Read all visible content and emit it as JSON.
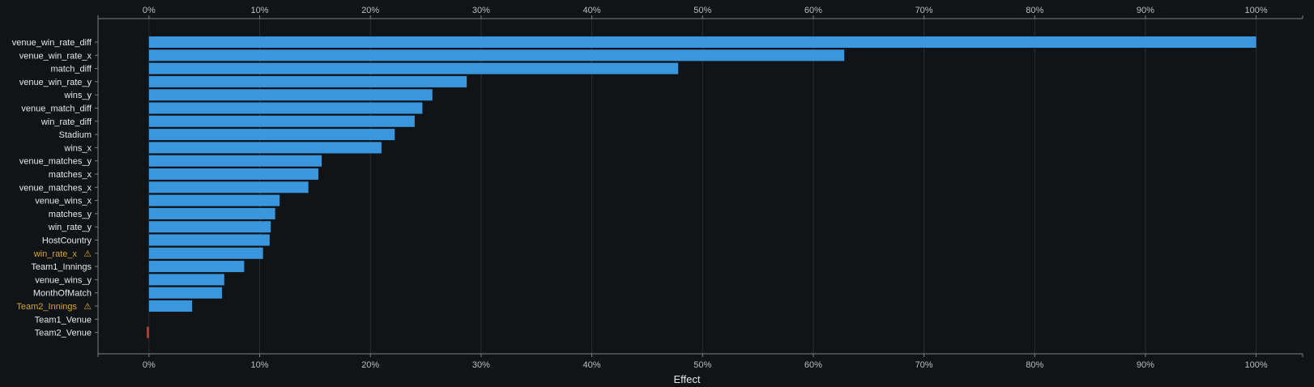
{
  "chart_data": {
    "type": "bar",
    "orientation": "horizontal",
    "xlabel": "Effect",
    "xlim": [
      -0.046,
      1.042
    ],
    "x_ticks": [
      0,
      0.1,
      0.2,
      0.3,
      0.4,
      0.5,
      0.6,
      0.7,
      0.8,
      0.9,
      1.0
    ],
    "x_tick_labels": [
      "0%",
      "10%",
      "20%",
      "30%",
      "40%",
      "50%",
      "60%",
      "70%",
      "80%",
      "90%",
      "100%"
    ],
    "tick_labels_top": true,
    "tick_labels_bottom": true,
    "grid": "vertical",
    "categories": [
      "venue_win_rate_diff",
      "venue_win_rate_x",
      "match_diff",
      "venue_win_rate_y",
      "wins_y",
      "venue_match_diff",
      "win_rate_diff",
      "Stadium",
      "wins_x",
      "venue_matches_y",
      "matches_x",
      "venue_matches_x",
      "venue_wins_x",
      "matches_y",
      "win_rate_y",
      "HostCountry",
      "win_rate_x",
      "Team1_Innings",
      "venue_wins_y",
      "MonthOfMatch",
      "Team2_Innings",
      "Team1_Venue",
      "Team2_Venue"
    ],
    "values": [
      1.0,
      0.628,
      0.478,
      0.287,
      0.256,
      0.247,
      0.24,
      0.222,
      0.21,
      0.156,
      0.153,
      0.144,
      0.118,
      0.114,
      0.11,
      0.109,
      0.103,
      0.086,
      0.068,
      0.066,
      0.039,
      0.0,
      -0.002
    ],
    "warning_categories": [
      "win_rate_x",
      "Team2_Innings"
    ],
    "warning_icon": "⚠",
    "colors": {
      "positive": "#3a97dd",
      "negative": "#c0392b",
      "warning_label": "#d9a43a",
      "label": "#e6e8ea",
      "tick": "#b9bec3",
      "grid": "#2a2e32",
      "axis": "#7a7f85",
      "background": "#111416"
    }
  }
}
